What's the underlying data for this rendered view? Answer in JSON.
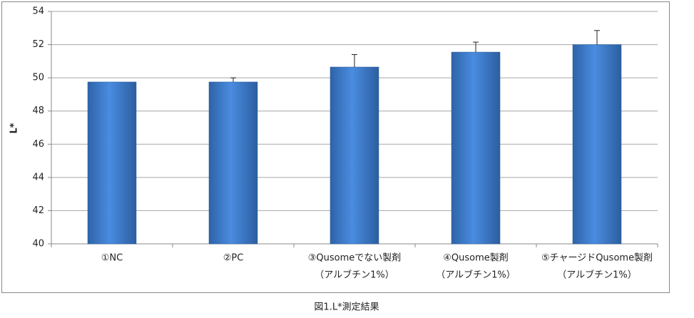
{
  "chart_data": {
    "type": "bar",
    "title": "図1.L*測定結果",
    "y_label": "L*",
    "categories": [
      [
        "①NC"
      ],
      [
        "②PC"
      ],
      [
        "③Qusomeでない製剤",
        "（アルブチン1%）"
      ],
      [
        "④Qusome製剤",
        "（アルブチン1%）"
      ],
      [
        "⑤チャージドQusome製剤",
        "（アルブチン1%）"
      ]
    ],
    "values": [
      49.75,
      49.75,
      50.65,
      51.55,
      52.0
    ],
    "errors": [
      null,
      0.25,
      0.75,
      0.6,
      0.85
    ],
    "color": "#3d7fd0",
    "ylim": [
      40,
      54
    ],
    "yticks": [
      40,
      42,
      44,
      46,
      48,
      50,
      52,
      54
    ],
    "grid": true
  }
}
